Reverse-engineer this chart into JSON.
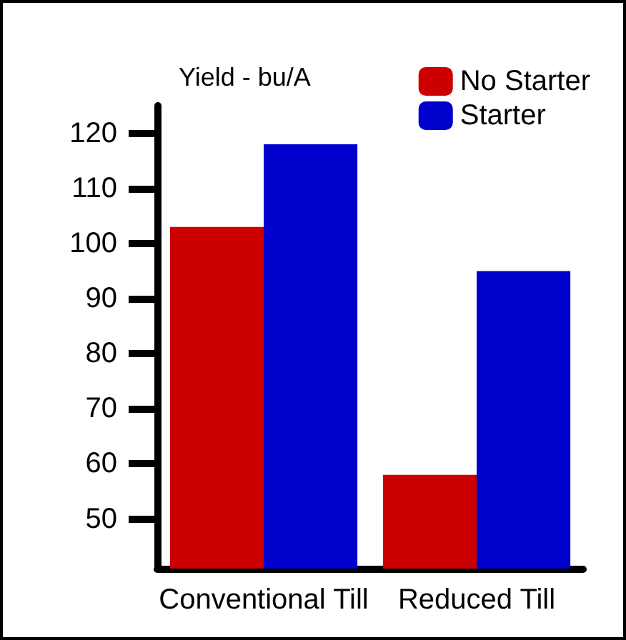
{
  "chart_data": {
    "type": "bar",
    "title": "Yield - bu/A",
    "categories": [
      "Conventional Till",
      "Reduced Till"
    ],
    "series": [
      {
        "name": "No Starter",
        "color": "#cc0000",
        "values": [
          103,
          58
        ]
      },
      {
        "name": "Starter",
        "color": "#0000cc",
        "values": [
          118,
          95
        ]
      }
    ],
    "ylim": [
      41,
      125
    ],
    "yticks": [
      50,
      60,
      70,
      80,
      90,
      100,
      110,
      120
    ],
    "grid": false,
    "legend": "top right"
  }
}
